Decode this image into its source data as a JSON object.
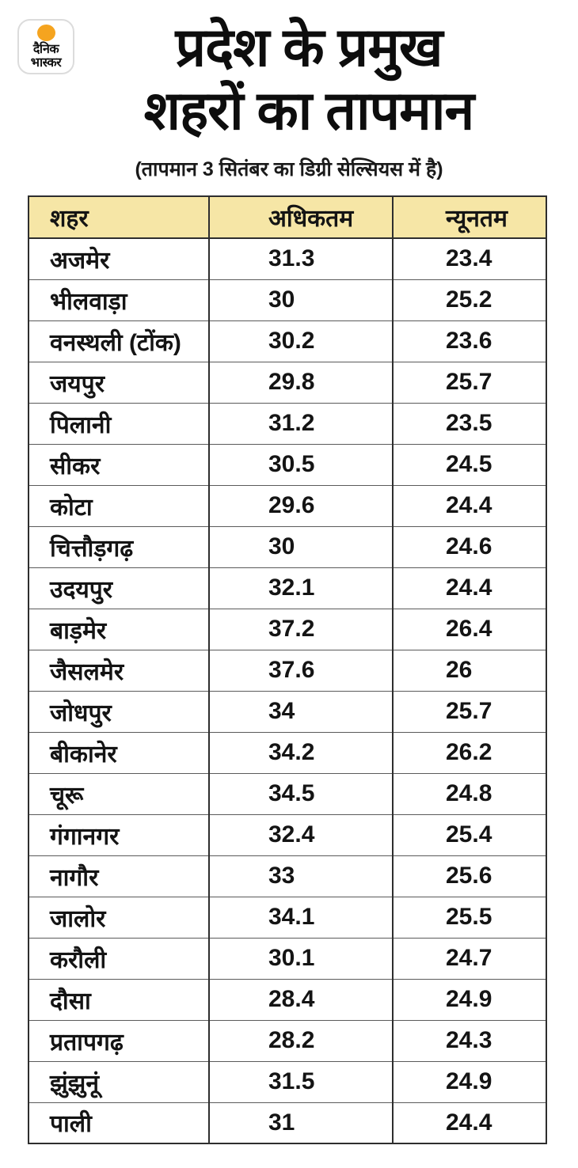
{
  "brand": {
    "name_line1": "दैनिक",
    "name_line2": "भास्कर",
    "sun_color": "#F5A41F"
  },
  "header": {
    "title_line1": "प्रदेश के प्रमुख",
    "title_line2": "शहरों का तापमान",
    "subtitle": "(तापमान 3 सितंबर का डिग्री सेल्सियस में है)"
  },
  "table": {
    "header_bg": "#F6E6A6",
    "columns": [
      "शहर",
      "अधिकतम",
      "न्यूनतम"
    ],
    "rows": [
      {
        "city": "अजमेर",
        "max": "31.3",
        "min": "23.4"
      },
      {
        "city": "भीलवाड़ा",
        "max": "30",
        "min": "25.2"
      },
      {
        "city": "वनस्थली (टोंक)",
        "max": "30.2",
        "min": "23.6"
      },
      {
        "city": "जयपुर",
        "max": "29.8",
        "min": "25.7"
      },
      {
        "city": "पिलानी",
        "max": "31.2",
        "min": "23.5"
      },
      {
        "city": "सीकर",
        "max": "30.5",
        "min": "24.5"
      },
      {
        "city": "कोटा",
        "max": "29.6",
        "min": "24.4"
      },
      {
        "city": "चित्तौड़गढ़",
        "max": "30",
        "min": "24.6"
      },
      {
        "city": "उदयपुर",
        "max": "32.1",
        "min": "24.4"
      },
      {
        "city": "बाड़मेर",
        "max": "37.2",
        "min": "26.4"
      },
      {
        "city": "जैसलमेर",
        "max": "37.6",
        "min": "26"
      },
      {
        "city": "जोधपुर",
        "max": "34",
        "min": "25.7"
      },
      {
        "city": "बीकानेर",
        "max": "34.2",
        "min": "26.2"
      },
      {
        "city": "चूरू",
        "max": "34.5",
        "min": "24.8"
      },
      {
        "city": "गंगानगर",
        "max": "32.4",
        "min": "25.4"
      },
      {
        "city": "नागौर",
        "max": "33",
        "min": "25.6"
      },
      {
        "city": "जालोर",
        "max": "34.1",
        "min": "25.5"
      },
      {
        "city": "करौली",
        "max": "30.1",
        "min": "24.7"
      },
      {
        "city": "दौसा",
        "max": "28.4",
        "min": "24.9"
      },
      {
        "city": "प्रतापगढ़",
        "max": "28.2",
        "min": "24.3"
      },
      {
        "city": "झुंझुनूं",
        "max": "31.5",
        "min": "24.9"
      },
      {
        "city": "पाली",
        "max": "31",
        "min": "24.4"
      }
    ]
  },
  "chart_data": {
    "type": "table",
    "title": "प्रदेश के प्रमुख शहरों का तापमान",
    "subtitle": "(तापमान 3 सितंबर का डिग्री सेल्सियस में है)",
    "columns": [
      "शहर",
      "अधिकतम",
      "न्यूनतम"
    ],
    "units": "°C",
    "categories": [
      "अजमेर",
      "भीलवाड़ा",
      "वनस्थली (टोंक)",
      "जयपुर",
      "पिलानी",
      "सीकर",
      "कोटा",
      "चित्तौड़गढ़",
      "उदयपुर",
      "बाड़मेर",
      "जैसलमेर",
      "जोधपुर",
      "बीकानेर",
      "चूरू",
      "गंगानगर",
      "नागौर",
      "जालोर",
      "करौली",
      "दौसा",
      "प्रतापगढ़",
      "झुंझुनूं",
      "पाली"
    ],
    "series": [
      {
        "name": "अधिकतम",
        "values": [
          31.3,
          30,
          30.2,
          29.8,
          31.2,
          30.5,
          29.6,
          30,
          32.1,
          37.2,
          37.6,
          34,
          34.2,
          34.5,
          32.4,
          33,
          34.1,
          30.1,
          28.4,
          28.2,
          31.5,
          31
        ]
      },
      {
        "name": "न्यूनतम",
        "values": [
          23.4,
          25.2,
          23.6,
          25.7,
          23.5,
          24.5,
          24.4,
          24.6,
          24.4,
          26.4,
          26,
          25.7,
          26.2,
          24.8,
          25.4,
          25.6,
          25.5,
          24.7,
          24.9,
          24.3,
          24.9,
          24.4
        ]
      }
    ]
  }
}
